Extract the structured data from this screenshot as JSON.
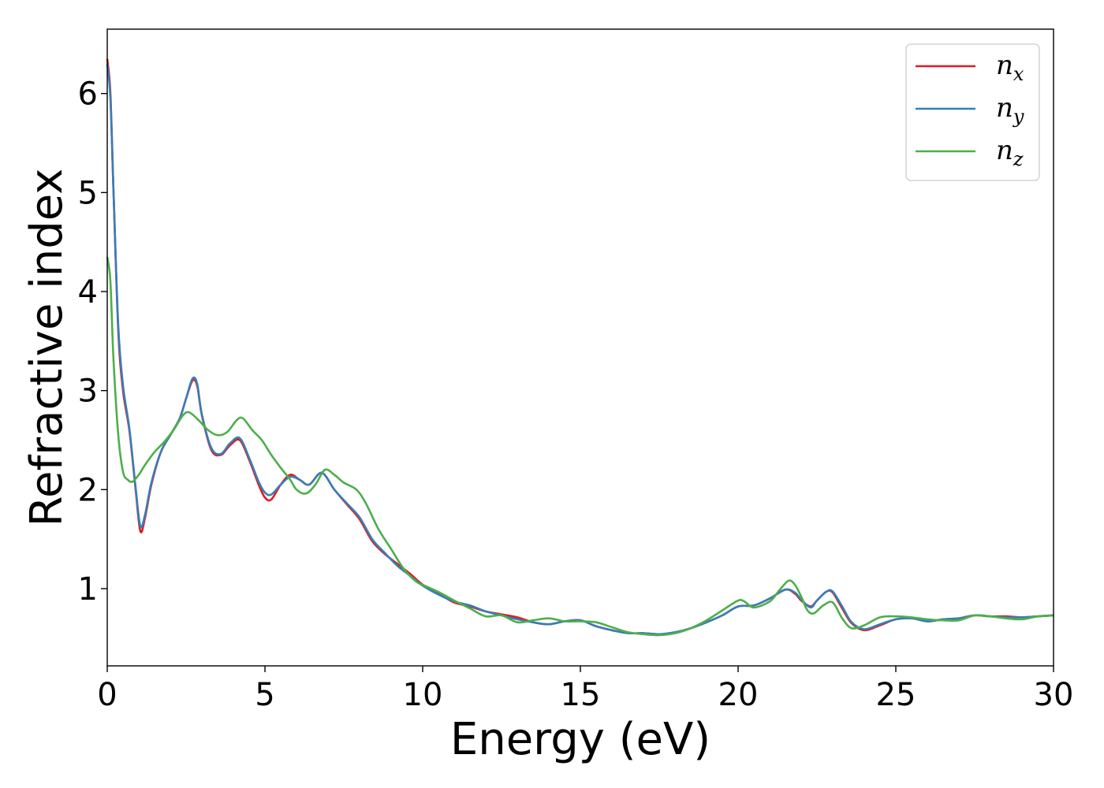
{
  "chart_data": {
    "type": "line",
    "title": "",
    "xlabel": "Energy (eV)",
    "ylabel": "Refractive index",
    "xlim": [
      0,
      30
    ],
    "ylim": [
      0.22,
      6.65
    ],
    "xticks": [
      0,
      5,
      10,
      15,
      20,
      25,
      30
    ],
    "yticks": [
      1,
      2,
      3,
      4,
      5,
      6
    ],
    "grid": false,
    "legend_position": "top-right",
    "series": [
      {
        "name": "n",
        "subscript": "x",
        "color": "#e41a1c",
        "x": [
          0,
          0.1,
          0.2,
          0.35,
          0.5,
          0.7,
          0.9,
          1.05,
          1.2,
          1.4,
          1.7,
          2.0,
          2.3,
          2.5,
          2.7,
          2.85,
          3.0,
          3.3,
          3.6,
          3.9,
          4.2,
          4.5,
          4.8,
          5.0,
          5.2,
          5.5,
          5.8,
          6.1,
          6.4,
          6.8,
          7.2,
          7.6,
          8.0,
          8.4,
          8.8,
          9.2,
          9.6,
          10.0,
          10.5,
          11.0,
          11.5,
          12.0,
          12.5,
          13.0,
          13.5,
          14.0,
          14.5,
          15.0,
          15.5,
          16.0,
          16.5,
          17.0,
          17.5,
          18.0,
          18.5,
          19.0,
          19.5,
          20.0,
          20.5,
          21.0,
          21.5,
          21.8,
          22.0,
          22.3,
          22.5,
          22.8,
          23.0,
          23.3,
          23.6,
          24.0,
          24.5,
          25.0,
          25.5,
          26.0,
          26.5,
          27.0,
          27.5,
          28.0,
          28.5,
          29.0,
          29.5,
          30.0
        ],
        "values": [
          6.35,
          6.0,
          5.0,
          3.6,
          3.0,
          2.6,
          2.0,
          1.58,
          1.72,
          2.05,
          2.38,
          2.55,
          2.72,
          2.92,
          3.1,
          3.05,
          2.75,
          2.4,
          2.35,
          2.45,
          2.5,
          2.3,
          2.05,
          1.92,
          1.9,
          2.05,
          2.15,
          2.1,
          2.05,
          2.17,
          2.0,
          1.85,
          1.7,
          1.48,
          1.35,
          1.25,
          1.15,
          1.04,
          0.95,
          0.86,
          0.82,
          0.77,
          0.74,
          0.71,
          0.66,
          0.64,
          0.67,
          0.68,
          0.62,
          0.58,
          0.55,
          0.55,
          0.54,
          0.55,
          0.6,
          0.66,
          0.73,
          0.82,
          0.83,
          0.9,
          0.99,
          0.95,
          0.88,
          0.82,
          0.88,
          0.97,
          0.96,
          0.8,
          0.65,
          0.58,
          0.63,
          0.69,
          0.7,
          0.67,
          0.69,
          0.7,
          0.73,
          0.72,
          0.72,
          0.71,
          0.72,
          0.73
        ]
      },
      {
        "name": "n",
        "subscript": "y",
        "color": "#377eb8",
        "x": [
          0,
          0.1,
          0.2,
          0.35,
          0.5,
          0.7,
          0.9,
          1.05,
          1.2,
          1.4,
          1.7,
          2.0,
          2.3,
          2.5,
          2.7,
          2.85,
          3.0,
          3.3,
          3.6,
          3.9,
          4.2,
          4.5,
          4.8,
          5.0,
          5.2,
          5.5,
          5.8,
          6.1,
          6.4,
          6.8,
          7.2,
          7.6,
          8.0,
          8.4,
          8.8,
          9.2,
          9.6,
          10.0,
          10.5,
          11.0,
          11.5,
          12.0,
          12.5,
          13.0,
          13.5,
          14.0,
          14.5,
          15.0,
          15.5,
          16.0,
          16.5,
          17.0,
          17.5,
          18.0,
          18.5,
          19.0,
          19.5,
          20.0,
          20.5,
          21.0,
          21.5,
          21.8,
          22.0,
          22.3,
          22.5,
          22.8,
          23.0,
          23.3,
          23.6,
          24.0,
          24.5,
          25.0,
          25.5,
          26.0,
          26.5,
          27.0,
          27.5,
          28.0,
          28.5,
          29.0,
          29.5,
          30.0
        ],
        "values": [
          6.3,
          5.95,
          5.0,
          3.65,
          3.05,
          2.62,
          2.02,
          1.63,
          1.75,
          2.07,
          2.38,
          2.55,
          2.72,
          2.92,
          3.12,
          3.07,
          2.76,
          2.42,
          2.36,
          2.47,
          2.52,
          2.32,
          2.08,
          1.97,
          1.95,
          2.05,
          2.13,
          2.1,
          2.05,
          2.17,
          2.0,
          1.86,
          1.72,
          1.5,
          1.36,
          1.23,
          1.13,
          1.03,
          0.94,
          0.87,
          0.83,
          0.77,
          0.73,
          0.69,
          0.66,
          0.64,
          0.67,
          0.68,
          0.62,
          0.58,
          0.55,
          0.55,
          0.54,
          0.56,
          0.6,
          0.66,
          0.73,
          0.82,
          0.83,
          0.9,
          0.99,
          0.96,
          0.89,
          0.81,
          0.88,
          0.97,
          0.97,
          0.82,
          0.66,
          0.59,
          0.64,
          0.69,
          0.7,
          0.67,
          0.69,
          0.7,
          0.73,
          0.72,
          0.71,
          0.71,
          0.72,
          0.73
        ]
      },
      {
        "name": "n",
        "subscript": "z",
        "color": "#4daf4a",
        "x": [
          0,
          0.1,
          0.2,
          0.35,
          0.5,
          0.65,
          0.8,
          1.0,
          1.2,
          1.5,
          1.8,
          2.1,
          2.4,
          2.6,
          2.9,
          3.2,
          3.5,
          3.8,
          4.1,
          4.3,
          4.6,
          4.9,
          5.2,
          5.5,
          5.8,
          6.0,
          6.3,
          6.6,
          6.9,
          7.2,
          7.5,
          7.9,
          8.2,
          8.6,
          9.0,
          9.4,
          9.8,
          10.2,
          10.6,
          11.0,
          11.5,
          12.0,
          12.5,
          13.0,
          13.5,
          14.0,
          14.5,
          15.0,
          15.5,
          16.0,
          16.5,
          17.0,
          17.5,
          18.0,
          18.5,
          19.0,
          19.5,
          20.0,
          20.2,
          20.5,
          21.0,
          21.3,
          21.6,
          21.8,
          22.0,
          22.2,
          22.4,
          22.7,
          23.0,
          23.3,
          23.6,
          24.0,
          24.5,
          25.0,
          25.5,
          26.0,
          26.5,
          27.0,
          27.5,
          28.0,
          28.5,
          29.0,
          29.5,
          30.0
        ],
        "values": [
          4.35,
          4.1,
          3.3,
          2.55,
          2.18,
          2.1,
          2.08,
          2.15,
          2.25,
          2.38,
          2.48,
          2.6,
          2.75,
          2.78,
          2.7,
          2.6,
          2.55,
          2.58,
          2.7,
          2.72,
          2.6,
          2.5,
          2.35,
          2.22,
          2.1,
          2.0,
          1.96,
          2.05,
          2.2,
          2.15,
          2.07,
          2.0,
          1.86,
          1.6,
          1.4,
          1.2,
          1.07,
          1.01,
          0.95,
          0.88,
          0.8,
          0.72,
          0.73,
          0.66,
          0.68,
          0.7,
          0.67,
          0.67,
          0.66,
          0.61,
          0.56,
          0.54,
          0.53,
          0.55,
          0.6,
          0.68,
          0.78,
          0.88,
          0.87,
          0.81,
          0.87,
          0.98,
          1.08,
          1.04,
          0.92,
          0.78,
          0.75,
          0.83,
          0.86,
          0.7,
          0.6,
          0.63,
          0.71,
          0.72,
          0.71,
          0.69,
          0.68,
          0.68,
          0.73,
          0.72,
          0.7,
          0.69,
          0.72,
          0.73
        ]
      }
    ]
  }
}
